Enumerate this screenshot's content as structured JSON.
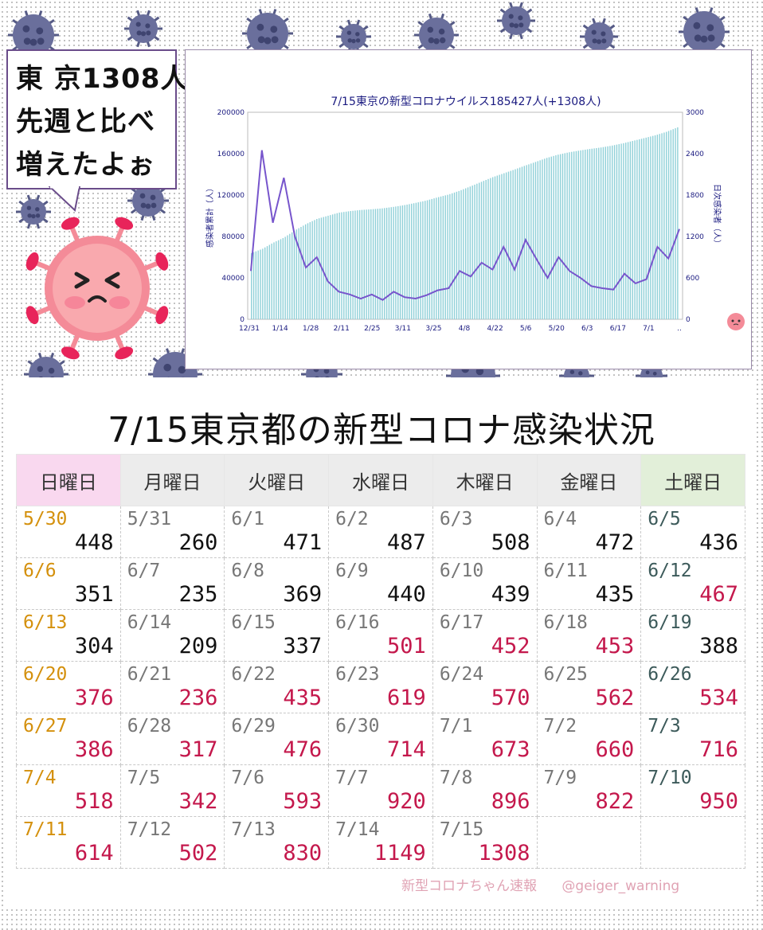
{
  "bubble": {
    "lines": [
      "東 京1308人",
      "先週と比べ",
      "増えたよぉ"
    ]
  },
  "colors": {
    "bar": "#8fd0d8",
    "line": "#7755cc",
    "title": "#1a1a80",
    "mascot": "#f48b98",
    "red": "#c4184c",
    "sunday": "#d4900c"
  },
  "chart_data": {
    "type": "bar",
    "title": "7/15東京の新型コロナウイルス185427人(+1308人)",
    "ylabel": "感染者累計（人）",
    "y2label": "日次感染者（人）",
    "ylim": [
      0,
      200000
    ],
    "y2lim": [
      0,
      3000
    ],
    "yticks": [
      "0",
      "40000",
      "80000",
      "120000",
      "160000",
      "200000"
    ],
    "y2ticks": [
      "0",
      "600",
      "1200",
      "1800",
      "2400",
      "3000"
    ],
    "xticks": [
      "12/31",
      "1/14",
      "1/28",
      "2/11",
      "2/25",
      "3/11",
      "3/25",
      "4/8",
      "4/22",
      "5/6",
      "5/20",
      "6/3",
      "6/17",
      "7/1",
      ".."
    ],
    "series": [
      {
        "values": [
          64000,
          68000,
          74000,
          79000,
          86000,
          92000,
          97000,
          100000,
          103000,
          104500,
          105600,
          106300,
          107200,
          108600,
          110300,
          112400,
          114700,
          117700,
          120400,
          124000,
          128200,
          132600,
          137000,
          140700,
          144400,
          148300,
          152000,
          155800,
          158900,
          161200,
          163000,
          164600,
          166000,
          167800,
          170000,
          172600,
          175200,
          177900,
          181200,
          185427
        ]
      },
      {
        "values": [
          700,
          2450,
          1400,
          2050,
          1200,
          750,
          900,
          550,
          400,
          360,
          300,
          360,
          280,
          400,
          320,
          300,
          350,
          420,
          450,
          700,
          620,
          820,
          720,
          1050,
          720,
          1150,
          870,
          600,
          900,
          700,
          600,
          480,
          450,
          430,
          660,
          520,
          580,
          1050,
          880,
          1308
        ]
      }
    ]
  },
  "table": {
    "title": "7/15東京都の新型コロナ感染状況",
    "headers": [
      "日曜日",
      "月曜日",
      "火曜日",
      "水曜日",
      "木曜日",
      "金曜日",
      "土曜日"
    ],
    "rows": [
      [
        {
          "d": "5/30",
          "v": "448",
          "r": false
        },
        {
          "d": "5/31",
          "v": "260",
          "r": false
        },
        {
          "d": "6/1",
          "v": "471",
          "r": false
        },
        {
          "d": "6/2",
          "v": "487",
          "r": false
        },
        {
          "d": "6/3",
          "v": "508",
          "r": false
        },
        {
          "d": "6/4",
          "v": "472",
          "r": false
        },
        {
          "d": "6/5",
          "v": "436",
          "r": false
        }
      ],
      [
        {
          "d": "6/6",
          "v": "351",
          "r": false
        },
        {
          "d": "6/7",
          "v": "235",
          "r": false
        },
        {
          "d": "6/8",
          "v": "369",
          "r": false
        },
        {
          "d": "6/9",
          "v": "440",
          "r": false
        },
        {
          "d": "6/10",
          "v": "439",
          "r": false
        },
        {
          "d": "6/11",
          "v": "435",
          "r": false
        },
        {
          "d": "6/12",
          "v": "467",
          "r": true
        }
      ],
      [
        {
          "d": "6/13",
          "v": "304",
          "r": false
        },
        {
          "d": "6/14",
          "v": "209",
          "r": false
        },
        {
          "d": "6/15",
          "v": "337",
          "r": false
        },
        {
          "d": "6/16",
          "v": "501",
          "r": true
        },
        {
          "d": "6/17",
          "v": "452",
          "r": true
        },
        {
          "d": "6/18",
          "v": "453",
          "r": true
        },
        {
          "d": "6/19",
          "v": "388",
          "r": false
        }
      ],
      [
        {
          "d": "6/20",
          "v": "376",
          "r": true
        },
        {
          "d": "6/21",
          "v": "236",
          "r": true
        },
        {
          "d": "6/22",
          "v": "435",
          "r": true
        },
        {
          "d": "6/23",
          "v": "619",
          "r": true
        },
        {
          "d": "6/24",
          "v": "570",
          "r": true
        },
        {
          "d": "6/25",
          "v": "562",
          "r": true
        },
        {
          "d": "6/26",
          "v": "534",
          "r": true
        }
      ],
      [
        {
          "d": "6/27",
          "v": "386",
          "r": true
        },
        {
          "d": "6/28",
          "v": "317",
          "r": true
        },
        {
          "d": "6/29",
          "v": "476",
          "r": true
        },
        {
          "d": "6/30",
          "v": "714",
          "r": true
        },
        {
          "d": "7/1",
          "v": "673",
          "r": true
        },
        {
          "d": "7/2",
          "v": "660",
          "r": true
        },
        {
          "d": "7/3",
          "v": "716",
          "r": true
        }
      ],
      [
        {
          "d": "7/4",
          "v": "518",
          "r": true
        },
        {
          "d": "7/5",
          "v": "342",
          "r": true
        },
        {
          "d": "7/6",
          "v": "593",
          "r": true
        },
        {
          "d": "7/7",
          "v": "920",
          "r": true
        },
        {
          "d": "7/8",
          "v": "896",
          "r": true
        },
        {
          "d": "7/9",
          "v": "822",
          "r": true
        },
        {
          "d": "7/10",
          "v": "950",
          "r": true
        }
      ],
      [
        {
          "d": "7/11",
          "v": "614",
          "r": true
        },
        {
          "d": "7/12",
          "v": "502",
          "r": true
        },
        {
          "d": "7/13",
          "v": "830",
          "r": true
        },
        {
          "d": "7/14",
          "v": "1149",
          "r": true
        },
        {
          "d": "7/15",
          "v": "1308",
          "r": true
        },
        {
          "d": "",
          "v": "",
          "r": false
        },
        {
          "d": "",
          "v": "",
          "r": false
        }
      ]
    ]
  },
  "footer": {
    "brand": "新型コロナちゃん速報",
    "handle": "@geiger_warning"
  }
}
